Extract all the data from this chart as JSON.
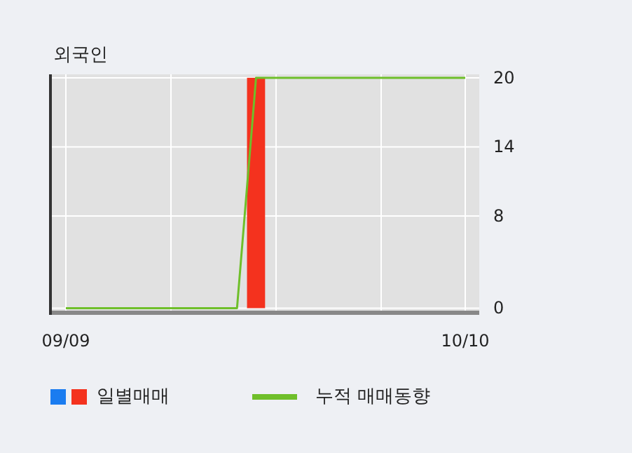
{
  "chart_data": {
    "type": "bar",
    "title": "외국인",
    "categories": [
      "09/09",
      null,
      null,
      null,
      null,
      null,
      null,
      null,
      null,
      null,
      null,
      null,
      null,
      null,
      null,
      null,
      null,
      null,
      null,
      null,
      null,
      "10/10"
    ],
    "series": [
      {
        "name": "일별매매",
        "color": "#f4321e",
        "values": [
          0,
          0,
          0,
          0,
          0,
          0,
          0,
          0,
          0,
          0,
          20,
          0,
          0,
          0,
          0,
          0,
          0,
          0,
          0,
          0,
          0,
          0
        ]
      },
      {
        "name": "누적 매매동향",
        "type": "line",
        "color": "#6fbf2a",
        "values": [
          0,
          0,
          0,
          0,
          0,
          0,
          0,
          0,
          0,
          0,
          20,
          20,
          20,
          20,
          20,
          20,
          20,
          20,
          20,
          20,
          20,
          20
        ]
      }
    ],
    "ylim": [
      -0.4,
      20.3
    ],
    "yticks": [
      0,
      8,
      14,
      20
    ],
    "grid": true,
    "legend": "bottom left"
  }
}
